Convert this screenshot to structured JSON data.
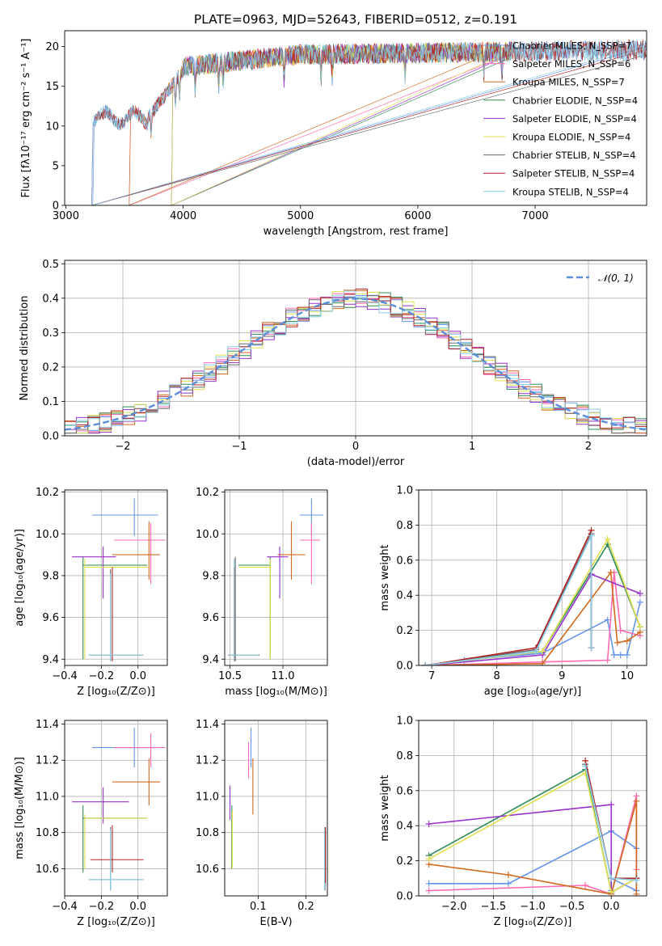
{
  "colors": {
    "chabrier_miles": "#6495ed",
    "salpeter_miles": "#ff69b4",
    "kroupa_miles": "#d2691e",
    "chabrier_elodie": "#2e8b57",
    "salpeter_elodie": "#9932cc",
    "kroupa_elodie": "#e0e050",
    "chabrier_stelib": "#696969",
    "salpeter_stelib": "#b22222",
    "kroupa_stelib": "#87ceeb",
    "normal": "#5b8fd9"
  },
  "chart_data": [
    {
      "type": "line",
      "title": "PLATE=0963, MJD=52643, FIBERID=0512, z=0.191",
      "xlabel": "wavelength [Angstrom, rest frame]",
      "ylabel": "Flux [fλ10⁻¹⁷ erg cm⁻² s⁻¹ A⁻¹]",
      "xlim": [
        2990,
        7950
      ],
      "ylim": [
        0,
        22
      ],
      "xticks": [
        "3000",
        "4000",
        "5000",
        "6000",
        "7000"
      ],
      "yticks": [
        "0",
        "5",
        "10",
        "15",
        "20"
      ],
      "legend_position": "right",
      "series": [
        {
          "name": "Chabrier MILES, N_SSP=7",
          "color_key": "chabrier_miles",
          "start": 3230,
          "end": 7950,
          "seed": 1
        },
        {
          "name": "Salpeter MILES, N_SSP=6",
          "color_key": "salpeter_miles",
          "start": 3540,
          "end": 6750,
          "seed": 2
        },
        {
          "name": "Kroupa MILES, N_SSP=7",
          "color_key": "kroupa_miles",
          "start": 3540,
          "end": 6800,
          "seed": 3
        },
        {
          "name": "Chabrier ELODIE, N_SSP=4",
          "color_key": "chabrier_elodie",
          "start": 3900,
          "end": 6800,
          "seed": 4
        },
        {
          "name": "Salpeter ELODIE, N_SSP=4",
          "color_key": "salpeter_elodie",
          "start": 3900,
          "end": 6800,
          "seed": 5
        },
        {
          "name": "Kroupa ELODIE, N_SSP=4",
          "color_key": "kroupa_elodie",
          "start": 3900,
          "end": 6800,
          "seed": 6
        },
        {
          "name": "Chabrier STELIB, N_SSP=4",
          "color_key": "chabrier_stelib",
          "start": 3220,
          "end": 7950,
          "seed": 7
        },
        {
          "name": "Salpeter STELIB, N_SSP=4",
          "color_key": "salpeter_stelib",
          "start": 3220,
          "end": 7950,
          "seed": 8
        },
        {
          "name": "Kroupa STELIB, N_SSP=4",
          "color_key": "kroupa_stelib",
          "start": 3220,
          "end": 7950,
          "seed": 9
        }
      ]
    },
    {
      "type": "histogram",
      "xlabel": "(data-model)/error",
      "ylabel": "Normed distribution",
      "xlim": [
        -2.5,
        2.5
      ],
      "ylim": [
        0,
        0.51
      ],
      "xticks": [
        "−2",
        "−1",
        "0",
        "1",
        "2"
      ],
      "yticks": [
        "0.0",
        "0.1",
        "0.2",
        "0.3",
        "0.4",
        "0.5"
      ],
      "legend": "𝒩(0, 1)",
      "bin_width": 0.1
    },
    {
      "type": "scatter",
      "xlabel": "Z [log₁₀(Z/Z⊙)]",
      "ylabel": "age  [log₁₀(age/yr)]",
      "xlim": [
        -0.4,
        0.16
      ],
      "ylim": [
        9.37,
        10.21
      ],
      "xticks": [
        "−0.4",
        "−0.2",
        "0.0"
      ],
      "yticks": [
        "9.4",
        "9.6",
        "9.8",
        "10.0",
        "10.2"
      ],
      "points": [
        {
          "key": "chabrier_miles",
          "x": -0.02,
          "xlo": -0.25,
          "xhi": 0.11,
          "y": 10.09,
          "ylo": 9.99,
          "yhi": 10.17
        },
        {
          "key": "salpeter_miles",
          "x": 0.07,
          "xlo": -0.13,
          "xhi": 0.15,
          "y": 9.97,
          "ylo": 9.76,
          "yhi": 10.05
        },
        {
          "key": "kroupa_miles",
          "x": 0.06,
          "xlo": -0.14,
          "xhi": 0.12,
          "y": 9.9,
          "ylo": 9.78,
          "yhi": 10.06
        },
        {
          "key": "chabrier_elodie",
          "x": -0.3,
          "xlo": -0.3,
          "xhi": 0.05,
          "y": 9.85,
          "ylo": 9.4,
          "yhi": 9.89
        },
        {
          "key": "salpeter_elodie",
          "x": -0.19,
          "xlo": -0.36,
          "xhi": -0.12,
          "y": 9.89,
          "ylo": 9.69,
          "yhi": 9.94
        },
        {
          "key": "kroupa_elodie",
          "x": -0.29,
          "xlo": -0.29,
          "xhi": 0.05,
          "y": 9.84,
          "ylo": 9.4,
          "yhi": 9.88
        },
        {
          "key": "chabrier_stelib",
          "x": -0.15,
          "xlo": -0.27,
          "xhi": 0.03,
          "y": 9.42,
          "ylo": 9.39,
          "yhi": 9.83
        },
        {
          "key": "salpeter_stelib",
          "x": -0.14,
          "xlo": -0.26,
          "xhi": 0.03,
          "y": 9.42,
          "ylo": 9.39,
          "yhi": 9.84
        },
        {
          "key": "kroupa_stelib",
          "x": -0.15,
          "xlo": -0.27,
          "xhi": 0.03,
          "y": 9.42,
          "ylo": 9.39,
          "yhi": 9.81
        }
      ]
    },
    {
      "type": "scatter",
      "xlabel": "mass [log₁₀(M/M⊙)]",
      "xlim": [
        10.45,
        11.42
      ],
      "ylim": [
        9.37,
        10.21
      ],
      "xticks": [
        "10.5",
        "11.0"
      ],
      "yticks": [
        "9.4",
        "9.6",
        "9.8",
        "10.0",
        "10.2"
      ],
      "points": [
        {
          "key": "chabrier_miles",
          "x": 11.27,
          "xlo": 11.16,
          "xhi": 11.38,
          "y": 10.09,
          "ylo": 9.99,
          "yhi": 10.17
        },
        {
          "key": "salpeter_miles",
          "x": 11.27,
          "xlo": 11.16,
          "xhi": 11.35,
          "y": 9.97,
          "ylo": 9.76,
          "yhi": 10.05
        },
        {
          "key": "kroupa_miles",
          "x": 11.08,
          "xlo": 10.95,
          "xhi": 11.21,
          "y": 9.9,
          "ylo": 9.78,
          "yhi": 10.06
        },
        {
          "key": "chabrier_elodie",
          "x": 10.88,
          "xlo": 10.58,
          "xhi": 10.88,
          "y": 9.85,
          "ylo": 9.4,
          "yhi": 9.89
        },
        {
          "key": "salpeter_elodie",
          "x": 10.97,
          "xlo": 10.85,
          "xhi": 11.05,
          "y": 9.89,
          "ylo": 9.69,
          "yhi": 9.94
        },
        {
          "key": "kroupa_elodie",
          "x": 10.88,
          "xlo": 10.58,
          "xhi": 10.88,
          "y": 9.84,
          "ylo": 9.4,
          "yhi": 9.88
        },
        {
          "key": "chabrier_stelib",
          "x": 10.55,
          "xlo": 10.48,
          "xhi": 10.78,
          "y": 9.42,
          "ylo": 9.39,
          "yhi": 9.89
        },
        {
          "key": "salpeter_stelib",
          "x": 10.54,
          "xlo": 10.48,
          "xhi": 10.77,
          "y": 9.42,
          "ylo": 9.39,
          "yhi": 9.84
        },
        {
          "key": "kroupa_stelib",
          "x": 10.54,
          "xlo": 10.48,
          "xhi": 10.77,
          "y": 9.42,
          "ylo": 9.39,
          "yhi": 9.88
        }
      ]
    },
    {
      "type": "line",
      "xlabel": "age  [log₁₀(age/yr)]",
      "ylabel": "mass weight",
      "xlim": [
        6.8,
        10.3
      ],
      "ylim": [
        0,
        1
      ],
      "xticks": [
        "7",
        "8",
        "9",
        "10"
      ],
      "yticks": [
        "0.0",
        "0.2",
        "0.4",
        "0.6",
        "0.8",
        "1.0"
      ],
      "series": [
        {
          "key": "chabrier_miles",
          "points": [
            [
              6.9,
              0
            ],
            [
              7.5,
              0.03
            ],
            [
              8.7,
              0.07
            ],
            [
              9.7,
              0.26
            ],
            [
              9.8,
              0.06
            ],
            [
              9.9,
              0.06
            ],
            [
              10.0,
              0.06
            ],
            [
              10.2,
              0.36
            ]
          ]
        },
        {
          "key": "salpeter_miles",
          "points": [
            [
              6.9,
              0
            ],
            [
              8.7,
              0.02
            ],
            [
              9.7,
              0.03
            ],
            [
              9.8,
              0.53
            ],
            [
              9.9,
              0.2
            ],
            [
              10.2,
              0.17
            ]
          ]
        },
        {
          "key": "kroupa_miles",
          "points": [
            [
              6.9,
              0
            ],
            [
              8.7,
              0.01
            ],
            [
              9.75,
              0.53
            ],
            [
              9.85,
              0.13
            ],
            [
              10.0,
              0.14
            ],
            [
              10.2,
              0.19
            ]
          ]
        },
        {
          "key": "chabrier_elodie",
          "points": [
            [
              6.9,
              0
            ],
            [
              8.7,
              0.08
            ],
            [
              9.7,
              0.69
            ],
            [
              10.2,
              0.22
            ]
          ]
        },
        {
          "key": "salpeter_elodie",
          "points": [
            [
              6.9,
              0
            ],
            [
              8.7,
              0.06
            ],
            [
              9.45,
              0.52
            ],
            [
              10.2,
              0.41
            ]
          ]
        },
        {
          "key": "kroupa_elodie",
          "points": [
            [
              6.9,
              0
            ],
            [
              8.7,
              0.08
            ],
            [
              9.7,
              0.72
            ],
            [
              10.2,
              0.22
            ]
          ]
        },
        {
          "key": "chabrier_stelib",
          "points": [
            [
              6.9,
              0
            ],
            [
              8.6,
              0.09
            ],
            [
              9.45,
              0.75
            ],
            [
              9.45,
              0.1
            ]
          ]
        },
        {
          "key": "salpeter_stelib",
          "points": [
            [
              6.9,
              0
            ],
            [
              8.6,
              0.1
            ],
            [
              9.45,
              0.77
            ],
            [
              9.45,
              0.1
            ]
          ]
        },
        {
          "key": "kroupa_stelib",
          "points": [
            [
              6.9,
              0
            ],
            [
              8.6,
              0.08
            ],
            [
              9.45,
              0.74
            ],
            [
              9.45,
              0.1
            ]
          ]
        }
      ]
    },
    {
      "type": "scatter",
      "xlabel": "Z [log₁₀(Z/Z⊙)]",
      "ylabel": "mass [log₁₀(M/M⊙)]",
      "xlim": [
        -0.4,
        0.16
      ],
      "ylim": [
        10.45,
        11.42
      ],
      "xticks": [
        "−0.4",
        "−0.2",
        "0.0"
      ],
      "yticks": [
        "10.6",
        "10.8",
        "11.0",
        "11.2",
        "11.4"
      ],
      "points": [
        {
          "key": "chabrier_miles",
          "x": -0.02,
          "xlo": -0.25,
          "xhi": 0.11,
          "y": 11.27,
          "ylo": 11.16,
          "yhi": 11.38
        },
        {
          "key": "salpeter_miles",
          "x": 0.07,
          "xlo": -0.13,
          "xhi": 0.15,
          "y": 11.27,
          "ylo": 11.16,
          "yhi": 11.35
        },
        {
          "key": "kroupa_miles",
          "x": 0.06,
          "xlo": -0.14,
          "xhi": 0.12,
          "y": 11.08,
          "ylo": 10.95,
          "yhi": 11.21
        },
        {
          "key": "chabrier_elodie",
          "x": -0.3,
          "xlo": -0.3,
          "xhi": 0.05,
          "y": 10.88,
          "ylo": 10.58,
          "yhi": 10.95
        },
        {
          "key": "salpeter_elodie",
          "x": -0.19,
          "xlo": -0.36,
          "xhi": -0.05,
          "y": 10.97,
          "ylo": 10.85,
          "yhi": 11.05
        },
        {
          "key": "kroupa_elodie",
          "x": -0.29,
          "xlo": -0.29,
          "xhi": 0.05,
          "y": 10.88,
          "ylo": 10.6,
          "yhi": 10.9
        },
        {
          "key": "chabrier_stelib",
          "x": -0.15,
          "xlo": -0.27,
          "xhi": 0.03,
          "y": 10.54,
          "ylo": 10.48,
          "yhi": 10.83
        },
        {
          "key": "salpeter_stelib",
          "x": -0.14,
          "xlo": -0.26,
          "xhi": 0.03,
          "y": 10.65,
          "ylo": 10.58,
          "yhi": 10.84
        },
        {
          "key": "kroupa_stelib",
          "x": -0.15,
          "xlo": -0.27,
          "xhi": 0.03,
          "y": 10.54,
          "ylo": 10.48,
          "yhi": 10.82
        }
      ]
    },
    {
      "type": "errorbar",
      "xlabel": "E(B-V)",
      "xlim": [
        0.03,
        0.245
      ],
      "ylim": [
        10.45,
        11.42
      ],
      "xticks": [
        "0.1",
        "0.2"
      ],
      "yticks": [
        "10.6",
        "10.8",
        "11.0",
        "11.2",
        "11.4"
      ],
      "points": [
        {
          "key": "chabrier_miles",
          "x": 0.085,
          "ylo": 11.16,
          "yhi": 11.38
        },
        {
          "key": "salpeter_miles",
          "x": 0.08,
          "ylo": 11.1,
          "yhi": 11.3
        },
        {
          "key": "kroupa_miles",
          "x": 0.089,
          "ylo": 10.9,
          "yhi": 11.21
        },
        {
          "key": "chabrier_elodie",
          "x": 0.045,
          "ylo": 10.6,
          "yhi": 10.95
        },
        {
          "key": "salpeter_elodie",
          "x": 0.041,
          "ylo": 10.87,
          "yhi": 11.06
        },
        {
          "key": "kroupa_elodie",
          "x": 0.046,
          "ylo": 10.6,
          "yhi": 10.92
        },
        {
          "key": "chabrier_stelib",
          "x": 0.24,
          "ylo": 10.48,
          "yhi": 10.83
        },
        {
          "key": "salpeter_stelib",
          "x": 0.241,
          "ylo": 10.52,
          "yhi": 10.83
        },
        {
          "key": "kroupa_stelib",
          "x": 0.239,
          "ylo": 10.48,
          "yhi": 10.82
        }
      ]
    },
    {
      "type": "line",
      "xlabel": "Z [log₁₀(Z/Z⊙)]",
      "ylabel": "mass weight",
      "xlim": [
        -2.45,
        0.45
      ],
      "ylim": [
        0,
        1
      ],
      "xticks": [
        "−2.0",
        "−1.5",
        "−1.0",
        "−0.5",
        "0.0"
      ],
      "yticks": [
        "0.0",
        "0.2",
        "0.4",
        "0.6",
        "0.8",
        "1.0"
      ],
      "series": [
        {
          "key": "chabrier_miles",
          "points": [
            [
              -2.32,
              0.07
            ],
            [
              -1.31,
              0.07
            ],
            [
              0,
              0.37
            ],
            [
              0.32,
              0.27
            ],
            [
              0.32,
              0.03
            ],
            [
              0,
              0.1
            ],
            [
              0,
              0.03
            ]
          ]
        },
        {
          "key": "salpeter_miles",
          "points": [
            [
              -2.32,
              0.03
            ],
            [
              -0.33,
              0.06
            ],
            [
              0,
              0.01
            ],
            [
              0.32,
              0.57
            ],
            [
              0.32,
              0.15
            ]
          ]
        },
        {
          "key": "kroupa_miles",
          "points": [
            [
              -2.32,
              0.18
            ],
            [
              -1.31,
              0.12
            ],
            [
              0,
              0.01
            ],
            [
              0.32,
              0.54
            ],
            [
              0.32,
              0.01
            ]
          ]
        },
        {
          "key": "chabrier_elodie",
          "points": [
            [
              -2.32,
              0.23
            ],
            [
              -0.33,
              0.72
            ],
            [
              0,
              0.02
            ],
            [
              0.32,
              0.1
            ]
          ]
        },
        {
          "key": "salpeter_elodie",
          "points": [
            [
              -2.32,
              0.41
            ],
            [
              0,
              0.52
            ],
            [
              0,
              0.02
            ],
            [
              0.32,
              0.1
            ]
          ]
        },
        {
          "key": "kroupa_elodie",
          "points": [
            [
              -2.32,
              0.21
            ],
            [
              -0.33,
              0.7
            ],
            [
              0,
              0.02
            ],
            [
              0.32,
              0.1
            ]
          ]
        },
        {
          "key": "chabrier_stelib",
          "points": [
            [
              -0.33,
              0.75
            ],
            [
              0,
              0.1
            ],
            [
              0.32,
              0.1
            ]
          ]
        },
        {
          "key": "salpeter_stelib",
          "points": [
            [
              -0.33,
              0.77
            ],
            [
              0,
              0.1
            ],
            [
              0.32,
              0.1
            ]
          ]
        },
        {
          "key": "kroupa_stelib",
          "points": [
            [
              -0.33,
              0.74
            ],
            [
              0,
              0.1
            ],
            [
              0.32,
              0.09
            ]
          ]
        }
      ]
    }
  ]
}
